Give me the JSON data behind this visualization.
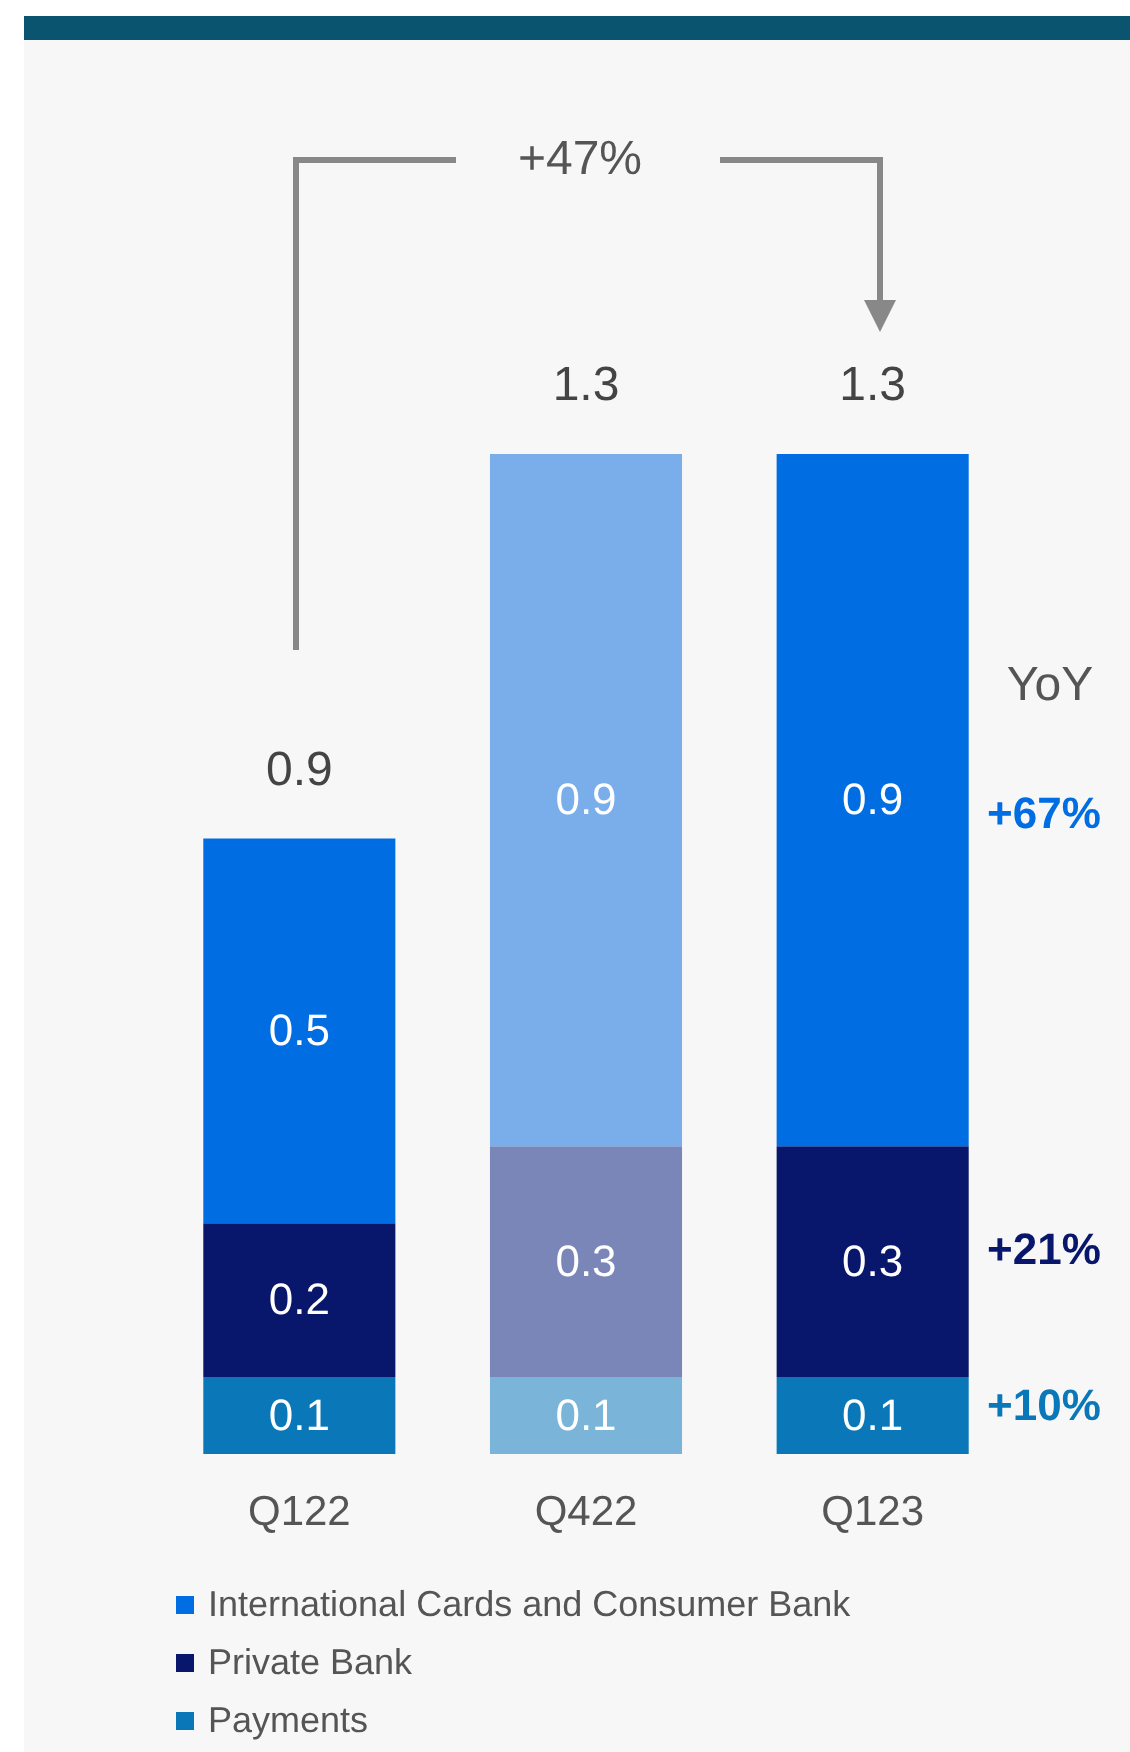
{
  "chart_data": {
    "type": "bar",
    "stacked": true,
    "categories": [
      "Q122",
      "Q422",
      "Q123"
    ],
    "series": [
      {
        "name": "Payments",
        "color": "#0a78b8",
        "colors": [
          "#0a78b8",
          "#7ab4d8",
          "#0a78b8"
        ],
        "values": [
          0.1,
          0.1,
          0.1
        ]
      },
      {
        "name": "Private Bank",
        "color": "#08166b",
        "colors": [
          "#08166b",
          "#7b86b8",
          "#08166b"
        ],
        "values": [
          0.2,
          0.3,
          0.3
        ]
      },
      {
        "name": "International Cards and Consumer Bank",
        "color": "#006ee2",
        "colors": [
          "#006ee2",
          "#7aaeea",
          "#006ee2"
        ],
        "values": [
          0.5,
          0.9,
          0.9
        ]
      }
    ],
    "data_labels": true,
    "totals": [
      "0.9",
      "1.3",
      "1.3"
    ],
    "tick_labels": "x",
    "legend": "bottom",
    "annotations": [
      "+47%",
      "YoY",
      "+67%",
      "+21%",
      "+10%"
    ]
  }
}
